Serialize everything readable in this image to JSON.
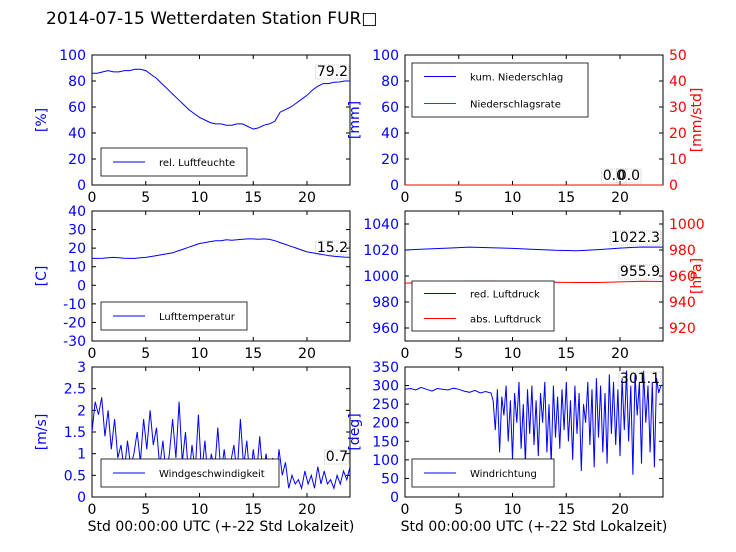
{
  "title": "2014-07-15 Wetterdaten Station FUR□",
  "colors": {
    "blue": "#0000ff",
    "red": "#ff0000",
    "black": "#000000"
  },
  "chart_data": [
    {
      "id": "humidity",
      "type": "line",
      "ylabel": "[%]",
      "xlabel": "",
      "xlim": [
        0,
        24
      ],
      "ylim": [
        0,
        100
      ],
      "xticks": [
        0,
        5,
        10,
        15,
        20
      ],
      "yticks": [
        0,
        20,
        40,
        60,
        80,
        100
      ],
      "legend": "bottom-left",
      "annotation": "79.2",
      "series": [
        {
          "name": "rel. Luftfeuchte",
          "color": "#0000ff",
          "x": [
            0,
            0.5,
            1,
            1.5,
            2,
            2.5,
            3,
            3.5,
            4,
            4.5,
            5,
            5.5,
            6,
            6.5,
            7,
            7.5,
            8,
            8.5,
            9,
            9.5,
            10,
            10.5,
            11,
            11.5,
            12,
            12.5,
            13,
            13.5,
            14,
            14.5,
            15,
            15.5,
            16,
            16.5,
            17,
            17.5,
            18,
            18.5,
            19,
            19.5,
            20,
            20.5,
            21,
            21.5,
            22,
            22.5,
            23,
            23.5,
            24
          ],
          "y": [
            86,
            86,
            87,
            88,
            87,
            87,
            88,
            88,
            89,
            89,
            88,
            85,
            82,
            78,
            74,
            70,
            66,
            62,
            58,
            55,
            52,
            50,
            48,
            47,
            47,
            46,
            46,
            47,
            47,
            45,
            43,
            44,
            46,
            47,
            49,
            56,
            58,
            60,
            63,
            66,
            69,
            73,
            76,
            78,
            78,
            79,
            79.2,
            80,
            80
          ]
        }
      ]
    },
    {
      "id": "precip",
      "type": "line",
      "ylabel": "[mm]",
      "y2label": "[mm/std]",
      "xlabel": "",
      "xlim": [
        0,
        24
      ],
      "ylim": [
        0,
        100
      ],
      "y2lim": [
        0,
        50
      ],
      "xticks": [
        0,
        5,
        10,
        15,
        20
      ],
      "yticks": [
        0,
        20,
        40,
        60,
        80,
        100
      ],
      "y2ticks": [
        0,
        10,
        20,
        30,
        40,
        50
      ],
      "legend": "top-left",
      "annotations": [
        "0.0",
        "0.0"
      ],
      "series": [
        {
          "name": "kum. Niederschlag",
          "color": "#0000ff",
          "axis": "left",
          "x": [
            0,
            24
          ],
          "y": [
            0,
            0
          ]
        },
        {
          "name": "Niederschlagsrate",
          "color": "#ff0000",
          "axis": "right",
          "x": [
            0,
            24
          ],
          "y": [
            0,
            0
          ]
        }
      ]
    },
    {
      "id": "temperature",
      "type": "line",
      "ylabel": "[C]",
      "xlabel": "",
      "xlim": [
        0,
        24
      ],
      "ylim": [
        -30,
        40
      ],
      "xticks": [
        0,
        5,
        10,
        15,
        20
      ],
      "yticks": [
        -30,
        -20,
        -10,
        0,
        10,
        20,
        30,
        40
      ],
      "legend": "bottom-left",
      "annotation": "15.2",
      "series": [
        {
          "name": "Lufttemperatur",
          "color": "#0000ff",
          "x": [
            0,
            0.5,
            1,
            1.5,
            2,
            2.5,
            3,
            3.5,
            4,
            4.5,
            5,
            5.5,
            6,
            6.5,
            7,
            7.5,
            8,
            8.5,
            9,
            9.5,
            10,
            10.5,
            11,
            11.5,
            12,
            12.5,
            13,
            13.5,
            14,
            14.5,
            15,
            15.5,
            16,
            16.5,
            17,
            17.5,
            18,
            18.5,
            19,
            19.5,
            20,
            20.5,
            21,
            21.5,
            22,
            22.5,
            23,
            23.5,
            24
          ],
          "y": [
            14.5,
            14.5,
            14.6,
            14.8,
            15,
            14.8,
            14.6,
            14.5,
            14.5,
            14.8,
            15,
            15.5,
            16,
            16.5,
            17,
            17.5,
            18.5,
            19.5,
            20.5,
            21.5,
            22.5,
            23,
            23.5,
            24,
            24,
            24.5,
            24.3,
            24.5,
            24.8,
            25,
            25,
            24.8,
            25,
            24.7,
            24,
            23,
            22,
            21,
            20,
            19,
            18,
            17.5,
            17,
            16.5,
            16,
            15.6,
            15.4,
            15.2,
            15.1
          ]
        }
      ]
    },
    {
      "id": "pressure",
      "type": "line",
      "ylabel": "",
      "y2label": "[hPa]",
      "xlabel": "",
      "xlim": [
        0,
        24
      ],
      "ylim": [
        950,
        1050
      ],
      "y2lim": [
        910,
        1010
      ],
      "xticks": [
        0,
        5,
        10,
        15,
        20
      ],
      "yticks": [
        960,
        980,
        1000,
        1020,
        1040
      ],
      "y2ticks": [
        920,
        940,
        960,
        980,
        1000
      ],
      "legend": "bottom-left",
      "annotations": [
        "1022.3",
        "955.9"
      ],
      "series": [
        {
          "name": "red. Luftdruck",
          "color": "#0000ff",
          "axis": "left",
          "x": [
            0,
            2,
            4,
            6,
            8,
            10,
            12,
            14,
            16,
            18,
            20,
            22,
            24
          ],
          "y": [
            1020,
            1020.8,
            1021.5,
            1022.2,
            1021.8,
            1021.2,
            1020.5,
            1019.8,
            1019.5,
            1020.3,
            1021.5,
            1022.3,
            1022.2
          ]
        },
        {
          "name": "abs. Luftdruck",
          "color": "#ff0000",
          "axis": "right",
          "x": [
            0,
            2,
            4,
            6,
            8,
            10,
            12,
            14,
            16,
            18,
            20,
            22,
            24
          ],
          "y": [
            954.5,
            955,
            955.5,
            956,
            956,
            955.8,
            955.5,
            955.2,
            955,
            955,
            955.5,
            955.9,
            955.8
          ]
        }
      ]
    },
    {
      "id": "windspeed",
      "type": "line",
      "ylabel": "[m/s]",
      "xlabel": "Std 00:00:00 UTC (+-22 Std Lokalzeit)",
      "xlim": [
        0,
        24
      ],
      "ylim": [
        0,
        3
      ],
      "xticks": [
        0,
        5,
        10,
        15,
        20
      ],
      "yticks": [
        0,
        0.5,
        1,
        1.5,
        2,
        2.5,
        3
      ],
      "legend": "bottom-left",
      "annotation": "0.7",
      "series": [
        {
          "name": "Windgeschwindigkeit",
          "color": "#0000ff",
          "x": [
            0,
            0.3,
            0.6,
            0.9,
            1.2,
            1.5,
            1.8,
            2.1,
            2.4,
            2.7,
            3,
            3.3,
            3.6,
            3.9,
            4.2,
            4.5,
            4.8,
            5.1,
            5.4,
            5.7,
            6,
            6.3,
            6.6,
            6.9,
            7.2,
            7.5,
            7.8,
            8.1,
            8.4,
            8.7,
            9,
            9.3,
            9.6,
            9.9,
            10.2,
            10.5,
            10.8,
            11.1,
            11.4,
            11.7,
            12,
            12.3,
            12.6,
            12.9,
            13.2,
            13.5,
            13.8,
            14.1,
            14.4,
            14.7,
            15,
            15.3,
            15.6,
            15.9,
            16.2,
            16.5,
            16.8,
            17.1,
            17.4,
            17.7,
            18,
            18.3,
            18.6,
            18.9,
            19.2,
            19.5,
            19.8,
            20.1,
            20.4,
            20.7,
            21,
            21.3,
            21.6,
            21.9,
            22.2,
            22.5,
            22.8,
            23.1,
            23.4,
            23.7,
            24
          ],
          "y": [
            1.5,
            2.2,
            1.9,
            2.3,
            1.4,
            2.0,
            1.1,
            1.8,
            0.9,
            1.2,
            0.6,
            1.3,
            0.7,
            1.0,
            1.5,
            0.8,
            1.8,
            1.1,
            2.0,
            1.2,
            1.6,
            0.7,
            1.3,
            0.5,
            1.0,
            1.8,
            0.9,
            2.2,
            0.8,
            1.5,
            0.4,
            1.2,
            0.6,
            1.9,
            0.5,
            1.3,
            0.4,
            1.0,
            0.6,
            1.6,
            0.5,
            1.1,
            0.4,
            0.8,
            1.2,
            0.5,
            1.8,
            0.7,
            1.3,
            0.4,
            1.1,
            0.5,
            1.4,
            0.5,
            1.0,
            0.4,
            0.9,
            0.3,
            1.1,
            0.5,
            0.8,
            0.2,
            0.5,
            0.3,
            0.4,
            0.2,
            0.6,
            0.3,
            0.5,
            0.2,
            0.7,
            0.3,
            0.6,
            0.3,
            0.4,
            0.2,
            0.5,
            0.3,
            0.6,
            0.4,
            0.7
          ]
        }
      ]
    },
    {
      "id": "winddir",
      "type": "line",
      "ylabel": "[deg]",
      "xlabel": "Std 00:00:00 UTC (+-22 Std Lokalzeit)",
      "xlim": [
        0,
        24
      ],
      "ylim": [
        0,
        350
      ],
      "xticks": [
        0,
        5,
        10,
        15,
        20
      ],
      "yticks": [
        0,
        50,
        100,
        150,
        200,
        250,
        300,
        350
      ],
      "legend": "bottom-left",
      "annotation": "301.1",
      "series": [
        {
          "name": "Windrichtung",
          "color": "#0000ff",
          "x": [
            0,
            0.5,
            1,
            1.5,
            2,
            2.5,
            3,
            3.5,
            4,
            4.5,
            5,
            5.5,
            6,
            6.5,
            7,
            7.5,
            8,
            8.2,
            8.4,
            8.6,
            8.8,
            9,
            9.2,
            9.4,
            9.6,
            9.8,
            10,
            10.2,
            10.4,
            10.6,
            10.8,
            11,
            11.2,
            11.4,
            11.6,
            11.8,
            12,
            12.2,
            12.4,
            12.6,
            12.8,
            13,
            13.2,
            13.4,
            13.6,
            13.8,
            14,
            14.2,
            14.4,
            14.6,
            14.8,
            15,
            15.2,
            15.4,
            15.6,
            15.8,
            16,
            16.2,
            16.4,
            16.6,
            16.8,
            17,
            17.2,
            17.4,
            17.6,
            17.8,
            18,
            18.2,
            18.4,
            18.6,
            18.8,
            19,
            19.2,
            19.4,
            19.6,
            19.8,
            20,
            20.2,
            20.4,
            20.6,
            20.8,
            21,
            21.2,
            21.4,
            21.6,
            21.8,
            22,
            22.2,
            22.4,
            22.6,
            22.8,
            23,
            23.2,
            23.4,
            23.6,
            23.8,
            24
          ],
          "y": [
            290,
            292,
            288,
            295,
            290,
            285,
            292,
            290,
            288,
            293,
            290,
            285,
            282,
            287,
            280,
            284,
            280,
            260,
            180,
            290,
            120,
            270,
            220,
            300,
            150,
            260,
            100,
            280,
            200,
            310,
            130,
            250,
            90,
            290,
            170,
            300,
            140,
            260,
            110,
            280,
            200,
            310,
            120,
            250,
            90,
            300,
            160,
            270,
            130,
            290,
            180,
            310,
            150,
            260,
            100,
            300,
            170,
            280,
            70,
            250,
            200,
            310,
            140,
            290,
            80,
            320,
            160,
            300,
            120,
            280,
            90,
            330,
            170,
            310,
            140,
            290,
            110,
            320,
            180,
            340,
            150,
            300,
            60,
            330,
            220,
            310,
            90,
            340,
            200,
            300,
            120,
            310,
            80,
            320,
            280,
            300,
            301
          ]
        }
      ]
    }
  ]
}
